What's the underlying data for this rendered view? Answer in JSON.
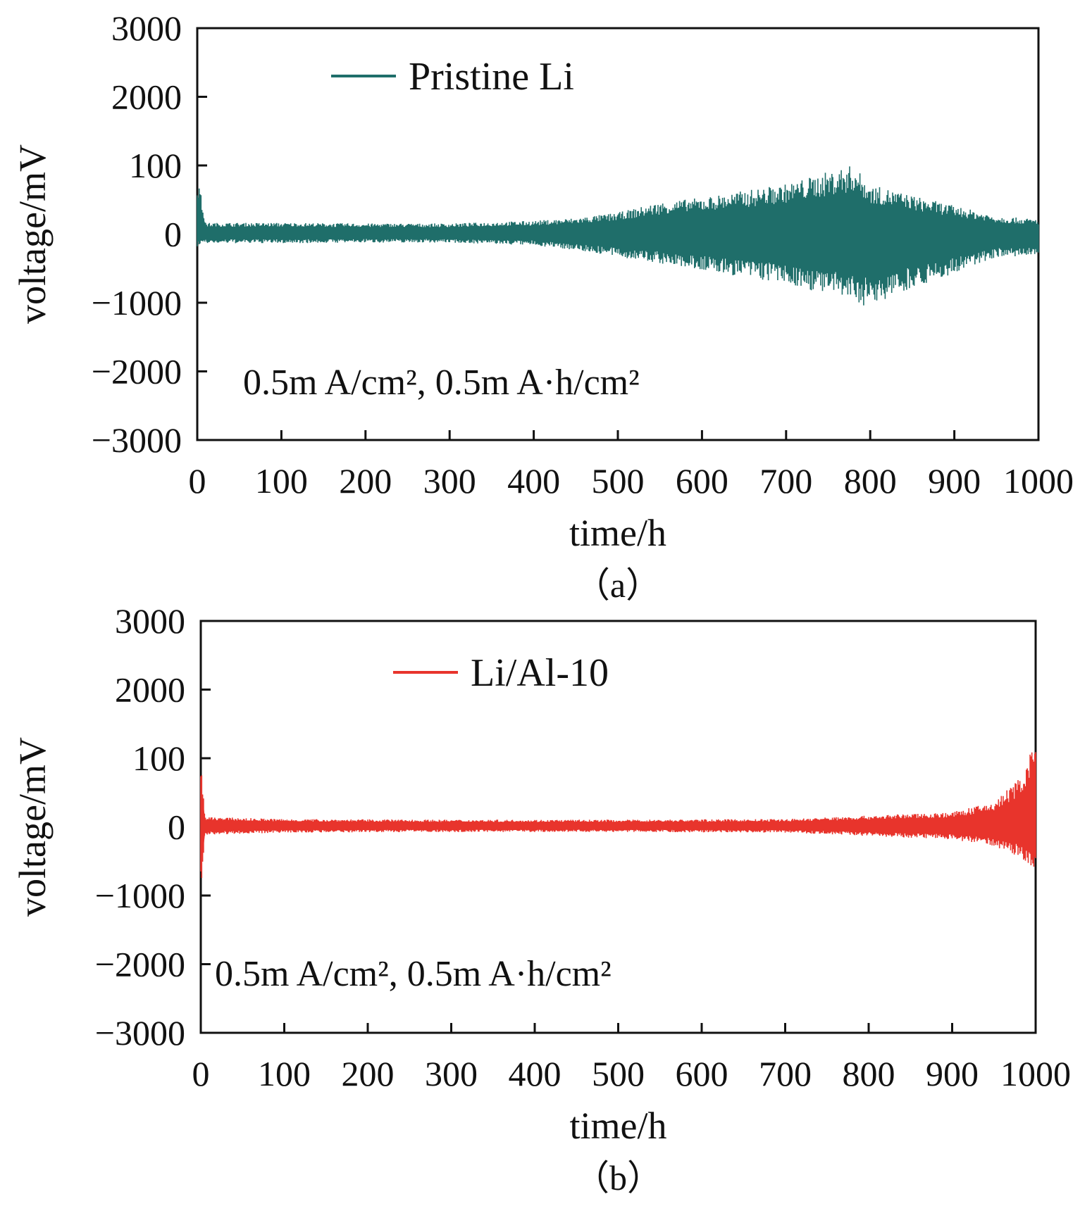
{
  "chart_data": [
    {
      "type": "line",
      "panel_label": "（a）",
      "xlabel": "time/h",
      "ylabel": "voltage/mV",
      "xlim": [
        0,
        1000
      ],
      "x_ticks": [
        "0",
        "100",
        "200",
        "300",
        "400",
        "500",
        "600",
        "700",
        "800",
        "900",
        "1000"
      ],
      "y_ticks": [
        "3000",
        "2000",
        "100",
        "0",
        "−1000",
        "−2000",
        "−3000"
      ],
      "annotation": "0.5m A/cm², 0.5m A·h/cm²",
      "legend_position": "top-center",
      "series": [
        {
          "name": "Pristine Li",
          "color": "#1f6e6a",
          "envelope_upper": [
            [
              0,
              900
            ],
            [
              10,
              150
            ],
            [
              100,
              150
            ],
            [
              200,
              140
            ],
            [
              300,
              140
            ],
            [
              400,
              180
            ],
            [
              450,
              220
            ],
            [
              500,
              300
            ],
            [
              550,
              450
            ],
            [
              600,
              520
            ],
            [
              650,
              620
            ],
            [
              700,
              720
            ],
            [
              750,
              900
            ],
            [
              780,
              1000
            ],
            [
              800,
              700
            ],
            [
              820,
              650
            ],
            [
              850,
              550
            ],
            [
              900,
              400
            ],
            [
              950,
              250
            ],
            [
              1000,
              200
            ]
          ],
          "envelope_lower": [
            [
              0,
              -200
            ],
            [
              10,
              -150
            ],
            [
              100,
              -150
            ],
            [
              200,
              -140
            ],
            [
              300,
              -140
            ],
            [
              400,
              -180
            ],
            [
              450,
              -250
            ],
            [
              500,
              -350
            ],
            [
              550,
              -450
            ],
            [
              600,
              -550
            ],
            [
              650,
              -650
            ],
            [
              700,
              -750
            ],
            [
              750,
              -900
            ],
            [
              780,
              -1000
            ],
            [
              800,
              -1100
            ],
            [
              820,
              -950
            ],
            [
              850,
              -800
            ],
            [
              900,
              -600
            ],
            [
              950,
              -350
            ],
            [
              1000,
              -350
            ]
          ]
        }
      ]
    },
    {
      "type": "line",
      "panel_label": "（b）",
      "xlabel": "time/h",
      "ylabel": "voltage/mV",
      "xlim": [
        0,
        1000
      ],
      "x_ticks": [
        "0",
        "100",
        "200",
        "300",
        "400",
        "500",
        "600",
        "700",
        "800",
        "900",
        "1000"
      ],
      "y_ticks": [
        "3000",
        "2000",
        "100",
        "0",
        "−1000",
        "−2000",
        "−3000"
      ],
      "annotation": "0.5m A/cm², 0.5m A·h/cm²",
      "legend_position": "top-center",
      "series": [
        {
          "name": "Li/Al-10",
          "color": "#e8342c",
          "envelope_upper": [
            [
              0,
              950
            ],
            [
              5,
              130
            ],
            [
              100,
              100
            ],
            [
              300,
              90
            ],
            [
              500,
              90
            ],
            [
              700,
              100
            ],
            [
              800,
              150
            ],
            [
              900,
              200
            ],
            [
              950,
              350
            ],
            [
              980,
              700
            ],
            [
              1000,
              1250
            ]
          ],
          "envelope_lower": [
            [
              0,
              -950
            ],
            [
              5,
              -130
            ],
            [
              100,
              -100
            ],
            [
              300,
              -90
            ],
            [
              500,
              -90
            ],
            [
              700,
              -100
            ],
            [
              800,
              -150
            ],
            [
              900,
              -200
            ],
            [
              950,
              -300
            ],
            [
              980,
              -450
            ],
            [
              1000,
              -650
            ]
          ]
        }
      ]
    }
  ]
}
